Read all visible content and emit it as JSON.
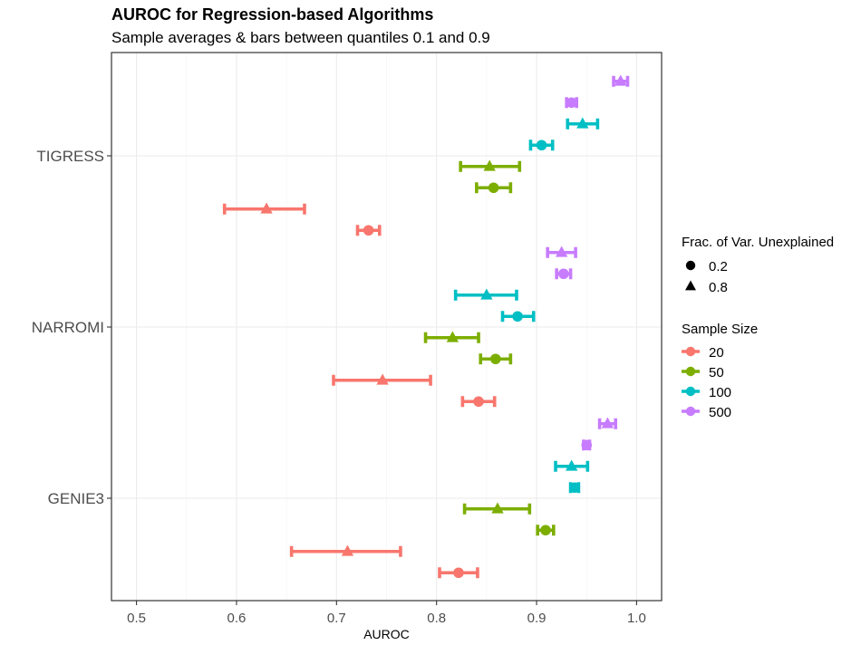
{
  "chart_data": {
    "type": "scatter",
    "title": "AUROC for Regression-based Algorithms",
    "subtitle": "Sample averages & bars between quantiles 0.1 and 0.9",
    "xlabel": "AUROC",
    "ylabel": "",
    "xlim": [
      0.475,
      1.025
    ],
    "x_ticks": [
      "0.5",
      "0.6",
      "0.7",
      "0.8",
      "0.9",
      "1.0"
    ],
    "categories": [
      "GENIE3",
      "NARROMI",
      "TIGRESS"
    ],
    "grid": true,
    "legend_position": "right",
    "legends": {
      "shape": {
        "title": "Frac. of Var. Unexplained",
        "entries": [
          {
            "label": "0.2",
            "shape": "circle"
          },
          {
            "label": "0.8",
            "shape": "triangle"
          }
        ]
      },
      "color": {
        "title": "Sample Size",
        "entries": [
          {
            "label": "20",
            "color": "#F8766D"
          },
          {
            "label": "50",
            "color": "#7CAE00"
          },
          {
            "label": "100",
            "color": "#00BFC4"
          },
          {
            "label": "500",
            "color": "#C77CFF"
          }
        ]
      }
    },
    "points": [
      {
        "algorithm": "GENIE3",
        "sample_size": "20",
        "frac": "0.2",
        "mean": 0.822,
        "low": 0.803,
        "high": 0.841
      },
      {
        "algorithm": "GENIE3",
        "sample_size": "20",
        "frac": "0.8",
        "mean": 0.711,
        "low": 0.655,
        "high": 0.764
      },
      {
        "algorithm": "GENIE3",
        "sample_size": "50",
        "frac": "0.2",
        "mean": 0.909,
        "low": 0.901,
        "high": 0.917
      },
      {
        "algorithm": "GENIE3",
        "sample_size": "50",
        "frac": "0.8",
        "mean": 0.861,
        "low": 0.828,
        "high": 0.893
      },
      {
        "algorithm": "GENIE3",
        "sample_size": "100",
        "frac": "0.2",
        "mean": 0.938,
        "low": 0.934,
        "high": 0.942
      },
      {
        "algorithm": "GENIE3",
        "sample_size": "100",
        "frac": "0.8",
        "mean": 0.935,
        "low": 0.919,
        "high": 0.951
      },
      {
        "algorithm": "GENIE3",
        "sample_size": "500",
        "frac": "0.2",
        "mean": 0.95,
        "low": 0.947,
        "high": 0.953
      },
      {
        "algorithm": "GENIE3",
        "sample_size": "500",
        "frac": "0.8",
        "mean": 0.971,
        "low": 0.963,
        "high": 0.979
      },
      {
        "algorithm": "NARROMI",
        "sample_size": "20",
        "frac": "0.2",
        "mean": 0.842,
        "low": 0.826,
        "high": 0.858
      },
      {
        "algorithm": "NARROMI",
        "sample_size": "20",
        "frac": "0.8",
        "mean": 0.746,
        "low": 0.697,
        "high": 0.794
      },
      {
        "algorithm": "NARROMI",
        "sample_size": "50",
        "frac": "0.2",
        "mean": 0.859,
        "low": 0.844,
        "high": 0.874
      },
      {
        "algorithm": "NARROMI",
        "sample_size": "50",
        "frac": "0.8",
        "mean": 0.816,
        "low": 0.789,
        "high": 0.842
      },
      {
        "algorithm": "NARROMI",
        "sample_size": "100",
        "frac": "0.2",
        "mean": 0.881,
        "low": 0.866,
        "high": 0.897
      },
      {
        "algorithm": "NARROMI",
        "sample_size": "100",
        "frac": "0.8",
        "mean": 0.85,
        "low": 0.819,
        "high": 0.88
      },
      {
        "algorithm": "NARROMI",
        "sample_size": "500",
        "frac": "0.2",
        "mean": 0.927,
        "low": 0.92,
        "high": 0.934
      },
      {
        "algorithm": "NARROMI",
        "sample_size": "500",
        "frac": "0.8",
        "mean": 0.925,
        "low": 0.911,
        "high": 0.939
      },
      {
        "algorithm": "TIGRESS",
        "sample_size": "20",
        "frac": "0.2",
        "mean": 0.732,
        "low": 0.721,
        "high": 0.743
      },
      {
        "algorithm": "TIGRESS",
        "sample_size": "20",
        "frac": "0.8",
        "mean": 0.63,
        "low": 0.588,
        "high": 0.668
      },
      {
        "algorithm": "TIGRESS",
        "sample_size": "50",
        "frac": "0.2",
        "mean": 0.857,
        "low": 0.84,
        "high": 0.874
      },
      {
        "algorithm": "TIGRESS",
        "sample_size": "50",
        "frac": "0.8",
        "mean": 0.853,
        "low": 0.824,
        "high": 0.883
      },
      {
        "algorithm": "TIGRESS",
        "sample_size": "100",
        "frac": "0.2",
        "mean": 0.905,
        "low": 0.894,
        "high": 0.916
      },
      {
        "algorithm": "TIGRESS",
        "sample_size": "100",
        "frac": "0.8",
        "mean": 0.946,
        "low": 0.931,
        "high": 0.961
      },
      {
        "algorithm": "TIGRESS",
        "sample_size": "500",
        "frac": "0.2",
        "mean": 0.935,
        "low": 0.93,
        "high": 0.94
      },
      {
        "algorithm": "TIGRESS",
        "sample_size": "500",
        "frac": "0.8",
        "mean": 0.984,
        "low": 0.977,
        "high": 0.991
      }
    ]
  }
}
